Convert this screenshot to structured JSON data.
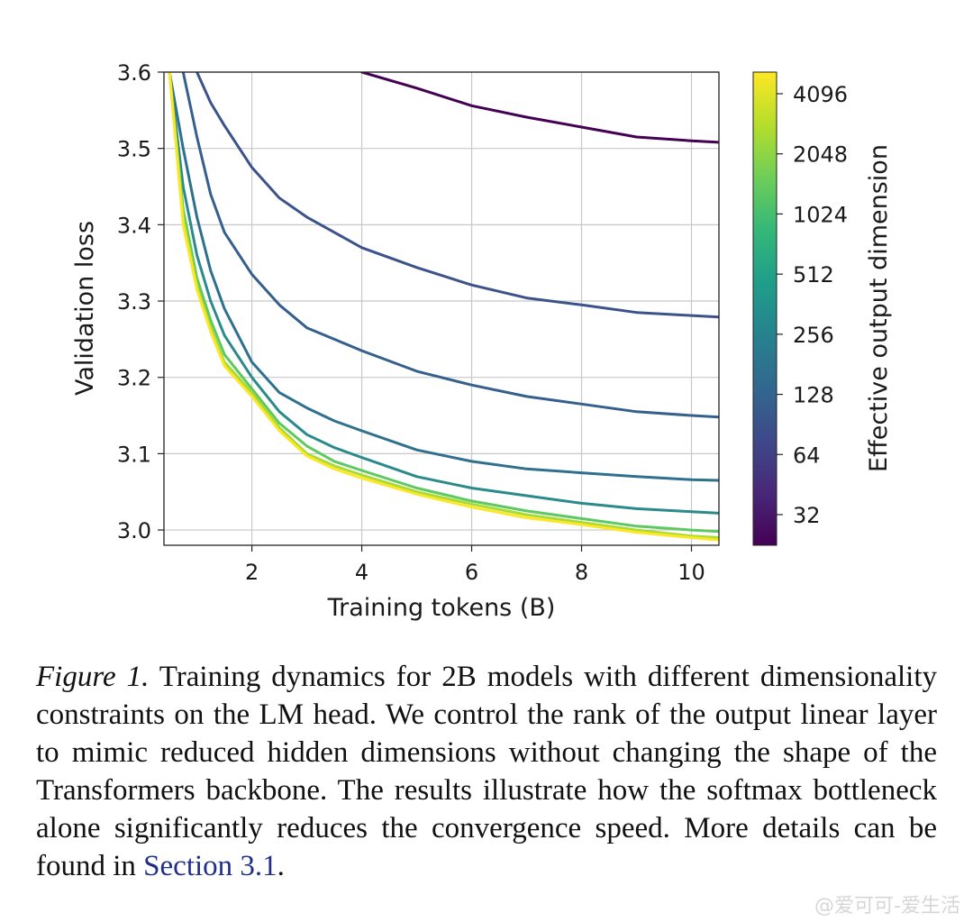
{
  "chart_data": {
    "type": "line",
    "xlabel": "Training tokens (B)",
    "ylabel": "Validation loss",
    "xlim": [
      0.4,
      10.5
    ],
    "ylim": [
      2.98,
      3.6
    ],
    "xticks": [
      2,
      4,
      6,
      8,
      10
    ],
    "yticks": [
      3.0,
      3.1,
      3.2,
      3.3,
      3.4,
      3.5,
      3.6
    ],
    "grid": true,
    "x": [
      0.5,
      0.75,
      1.0,
      1.25,
      1.5,
      2.0,
      2.5,
      3.0,
      3.5,
      4.0,
      5.0,
      6.0,
      7.0,
      8.0,
      9.0,
      10.0,
      10.5
    ],
    "series": [
      {
        "name": "32",
        "color": "#440154",
        "values": [
          null,
          null,
          null,
          null,
          null,
          null,
          null,
          null,
          null,
          3.6,
          3.579,
          3.556,
          3.541,
          3.528,
          3.515,
          3.51,
          3.508
        ]
      },
      {
        "name": "64",
        "color": "#3b528b",
        "values": [
          null,
          null,
          3.6,
          3.56,
          3.53,
          3.475,
          3.435,
          3.41,
          3.39,
          3.37,
          3.344,
          3.321,
          3.304,
          3.295,
          3.285,
          3.281,
          3.279
        ]
      },
      {
        "name": "128",
        "color": "#35608d",
        "values": [
          null,
          3.6,
          3.515,
          3.44,
          3.39,
          3.335,
          3.295,
          3.265,
          3.25,
          3.235,
          3.208,
          3.19,
          3.175,
          3.165,
          3.155,
          3.15,
          3.148
        ]
      },
      {
        "name": "256",
        "color": "#2f708e",
        "values": [
          3.6,
          3.5,
          3.41,
          3.34,
          3.29,
          3.22,
          3.18,
          3.16,
          3.143,
          3.13,
          3.105,
          3.09,
          3.08,
          3.075,
          3.07,
          3.066,
          3.065
        ]
      },
      {
        "name": "512",
        "color": "#2a8a8c",
        "values": [
          3.6,
          3.45,
          3.36,
          3.3,
          3.255,
          3.2,
          3.155,
          3.125,
          3.108,
          3.095,
          3.07,
          3.055,
          3.045,
          3.035,
          3.028,
          3.024,
          3.022
        ]
      },
      {
        "name": "1024",
        "color": "#5ec962",
        "values": [
          3.6,
          3.42,
          3.33,
          3.275,
          3.23,
          3.185,
          3.14,
          3.11,
          3.09,
          3.078,
          3.055,
          3.038,
          3.025,
          3.015,
          3.005,
          3.0,
          2.998
        ]
      },
      {
        "name": "2048",
        "color": "#a8db34",
        "values": [
          3.6,
          3.41,
          3.32,
          3.265,
          3.22,
          3.18,
          3.134,
          3.1,
          3.084,
          3.072,
          3.05,
          3.034,
          3.02,
          3.01,
          3.0,
          2.992,
          2.99
        ]
      },
      {
        "name": "4096",
        "color": "#fde725",
        "values": [
          3.6,
          3.4,
          3.315,
          3.26,
          3.215,
          3.175,
          3.13,
          3.097,
          3.08,
          3.068,
          3.047,
          3.03,
          3.016,
          3.007,
          2.997,
          2.99,
          2.987
        ]
      }
    ],
    "colorbar": {
      "label": "Effective output dimension",
      "ticks": [
        "32",
        "64",
        "128",
        "256",
        "512",
        "1024",
        "2048",
        "4096"
      ],
      "colors": [
        "#fde725",
        "#b5de2b",
        "#6ece58",
        "#35b779",
        "#1f9e89",
        "#26828e",
        "#31688e",
        "#3e4989",
        "#482878",
        "#440154"
      ]
    }
  },
  "caption": {
    "figure_label": "Figure 1.",
    "text": " Training dynamics for 2B models with different dimensionality constraints on the LM head. We control the rank of the output linear layer to mimic reduced hidden dimensions without changing the shape of the Transformers backbone. The results illustrate how the softmax bottleneck alone significantly reduces the convergence speed. More details can be found in ",
    "link_text": "Section 3.1",
    "end": "."
  },
  "watermark": "@爱可可-爱生活"
}
